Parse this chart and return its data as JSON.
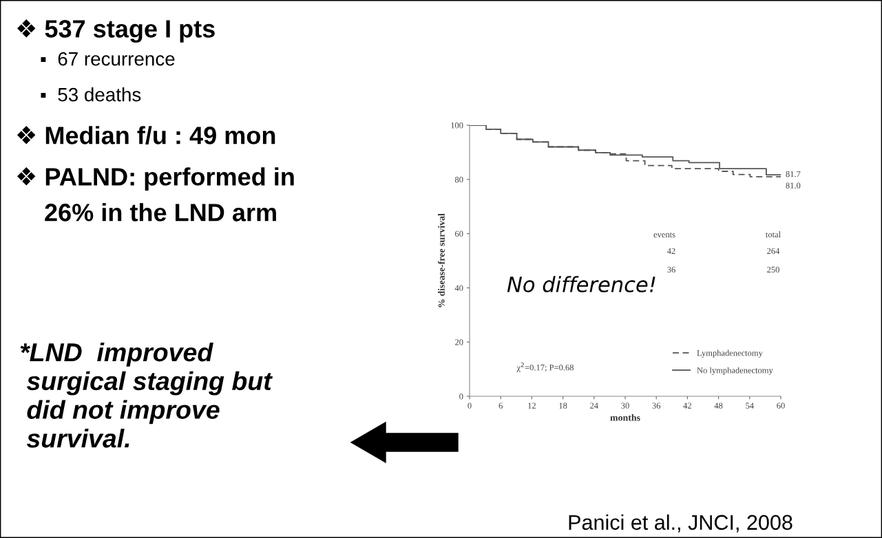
{
  "chart_data": {
    "type": "step",
    "xlabel": "months",
    "ylabel": "% disease-free survival",
    "xlim": [
      0,
      60
    ],
    "xticks": [
      0,
      6,
      12,
      18,
      24,
      30,
      36,
      42,
      48,
      54,
      60
    ],
    "ylim": [
      0,
      100
    ],
    "yticks": [
      0,
      20,
      40,
      60,
      80,
      100
    ],
    "grid": false,
    "legend": "bottom right",
    "marker": "none",
    "series": [
      {
        "name": "Lymphadenectomy",
        "color": "#555555",
        "line_style": "dashed",
        "x": [
          0,
          3.2,
          6.0,
          9.1,
          12.2,
          15.2,
          21,
          24.3,
          27.1,
          30.2,
          33.8,
          39,
          48,
          50.8,
          54.1,
          60
        ],
        "values": [
          100,
          98.5,
          97,
          94.8,
          93.8,
          92,
          90.8,
          89.9,
          89.4,
          86.9,
          85.1,
          84,
          83,
          81.8,
          81.0,
          81.0
        ]
      },
      {
        "name": "No lymphadenectomy",
        "color": "#555555",
        "line_style": "solid",
        "x": [
          0,
          3.2,
          6.0,
          9.1,
          12.2,
          15.2,
          21,
          24.3,
          27.1,
          33.3,
          39.2,
          42.3,
          48.2,
          57.2,
          60
        ],
        "values": [
          100,
          98.5,
          97,
          94.8,
          93.8,
          92,
          90.8,
          89.9,
          89,
          88.3,
          86.9,
          86.2,
          84,
          81.7,
          81.7
        ]
      }
    ],
    "annotations": [
      "❖ 537 stage I pts",
      "▪  67 recurrence",
      "▪  53 deaths",
      "❖ Median f/u : 49 mon",
      "❖ PALND: performed in",
      "26% in the LND arm",
      "*LND  improved\n surgical staging but\n did not improve\n survival.",
      "No difference!",
      "χ$^{2}$=0.17; P=0.68",
      "events",
      "total",
      "42",
      "264",
      "36",
      "250",
      {
        "text": "81.7",
        "x": 60,
        "y": 81.7
      },
      {
        "text": "81.0",
        "x": 60,
        "y": 81.0
      },
      "Panici et al., JNCI, 2008"
    ]
  }
}
